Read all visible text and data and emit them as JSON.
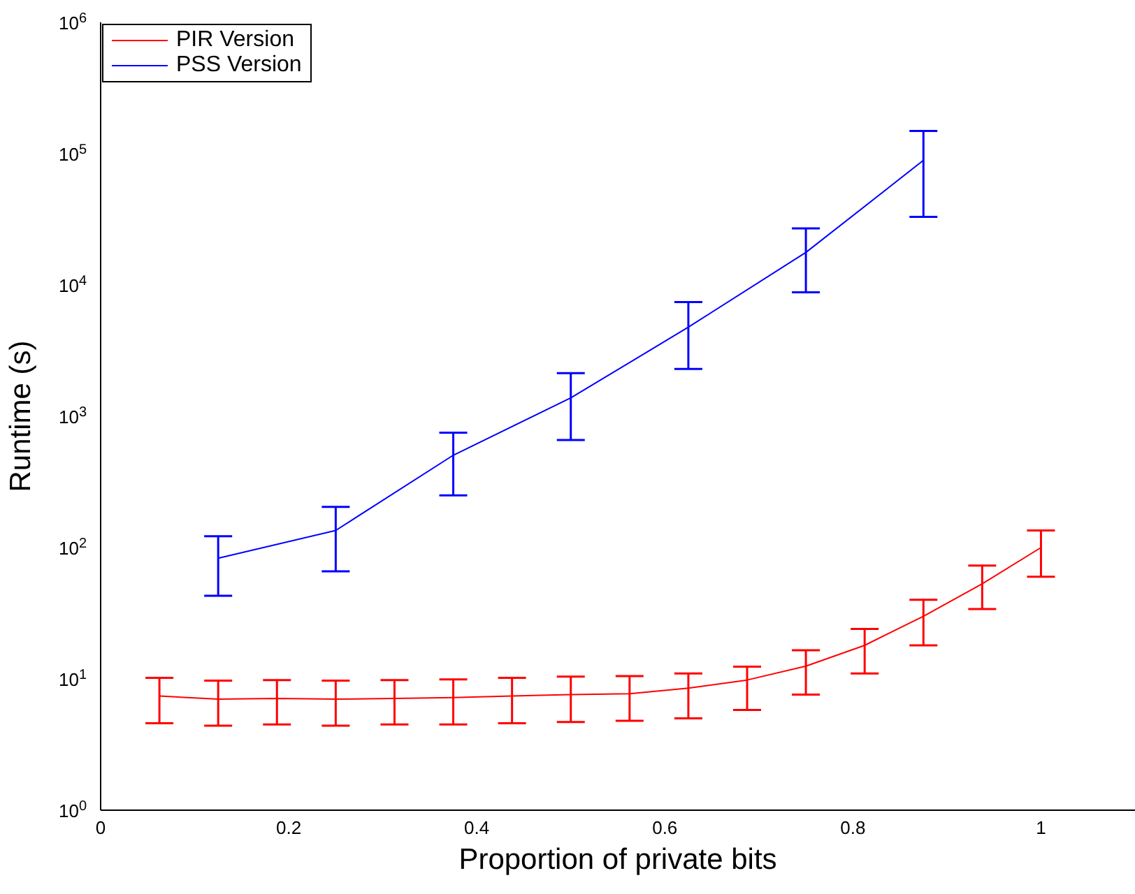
{
  "chart_data": {
    "type": "line",
    "xlabel": "Proportion of private bits",
    "ylabel": "Runtime (s)",
    "log": "y",
    "xlim": [
      0,
      1.1
    ],
    "xticks": [
      0,
      0.2,
      0.4,
      0.6,
      0.8,
      1
    ],
    "ylim": [
      1,
      1000000
    ],
    "yticks": [
      {
        "value": 1,
        "label": "10$^{0}$"
      },
      {
        "value": 10,
        "label": "10$^{1}$"
      },
      {
        "value": 100,
        "label": "10$^{2}$"
      },
      {
        "value": 1000,
        "label": "10$^{3}$"
      },
      {
        "value": 10000,
        "label": "10$^{4}$"
      },
      {
        "value": 100000,
        "label": "10$^{5}$"
      },
      {
        "value": 1000000,
        "label": "10$^{6}$"
      }
    ],
    "grid": false,
    "legend": "top left",
    "marker": "none",
    "line_style": "solid",
    "series": [
      {
        "name": "PIR Version",
        "color": "#ff0000",
        "x": [
          0.0625,
          0.125,
          0.1875,
          0.25,
          0.3125,
          0.375,
          0.4375,
          0.5,
          0.5625,
          0.625,
          0.6875,
          0.75,
          0.8125,
          0.875,
          0.9375,
          1
        ],
        "values": [
          7.4,
          7.0,
          7.1,
          7.0,
          7.1,
          7.2,
          7.4,
          7.6,
          7.7,
          8.5,
          9.8,
          12.5,
          18,
          30,
          53,
          100
        ],
        "errors": [
          [
            4.6,
            10.2
          ],
          [
            4.4,
            9.7
          ],
          [
            4.5,
            9.8
          ],
          [
            4.4,
            9.7
          ],
          [
            4.5,
            9.8
          ],
          [
            4.5,
            9.9
          ],
          [
            4.6,
            10.2
          ],
          [
            4.7,
            10.4
          ],
          [
            4.8,
            10.5
          ],
          [
            5.0,
            11
          ],
          [
            5.8,
            12.4
          ],
          [
            7.6,
            16.5
          ],
          [
            11,
            24
          ],
          [
            18,
            40
          ],
          [
            34,
            73
          ],
          [
            60,
            135
          ]
        ]
      },
      {
        "name": "PSS Version",
        "color": "#0000ff",
        "x": [
          0.125,
          0.25,
          0.375,
          0.5,
          0.625,
          0.75,
          0.875
        ],
        "values": [
          83,
          135,
          505,
          1380,
          4770,
          17700,
          89000
        ],
        "errors": [
          [
            43,
            122
          ],
          [
            66,
            204
          ],
          [
            250,
            750
          ],
          [
            660,
            2130
          ],
          [
            2290,
            7400
          ],
          [
            8800,
            27000
          ],
          [
            33000,
            149000
          ]
        ]
      }
    ]
  }
}
